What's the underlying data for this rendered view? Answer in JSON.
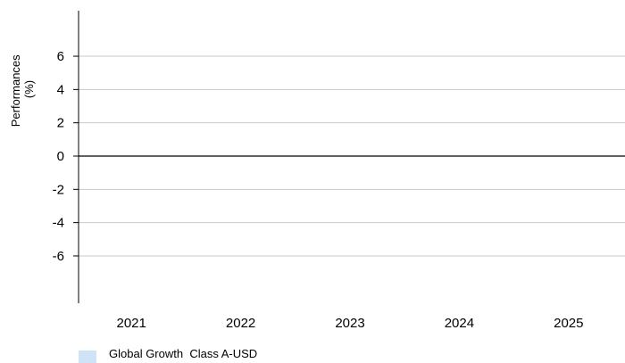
{
  "chart_data": {
    "type": "bar",
    "title": "",
    "xlabel": "",
    "ylabel": [
      "Performances",
      "(%)"
    ],
    "categories": [
      "2021",
      "2022",
      "2023",
      "2024",
      "2025"
    ],
    "series": [
      {
        "name": "Global Growth  Class A-USD",
        "color": "#cfe3f7",
        "values": [
          null,
          null,
          null,
          null,
          null
        ]
      }
    ],
    "ylim": [
      -9,
      9
    ],
    "yticks": [
      6,
      4,
      2,
      0,
      -2,
      -4,
      -6
    ],
    "ytick_labels": [
      "6",
      "4",
      "2",
      "0",
      "-2",
      "-4",
      "-6"
    ],
    "grid": true,
    "legend_position": "bottom-left"
  }
}
